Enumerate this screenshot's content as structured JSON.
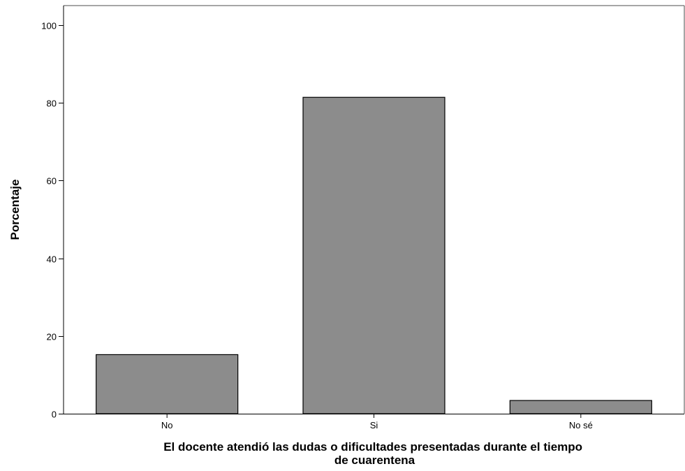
{
  "chart_data": {
    "type": "bar",
    "categories": [
      "No",
      "Si",
      "No sé"
    ],
    "values": [
      15.2,
      81.4,
      3.4
    ],
    "xlabel": [
      "El docente atendió las dudas o dificultades presentadas durante el tiempo",
      "de cuarentena"
    ],
    "ylabel": "Porcentaje",
    "ylim": [
      0,
      105
    ],
    "yticks": [
      0,
      20,
      40,
      60,
      80,
      100
    ],
    "grid": false,
    "bar_color": "#8c8c8c",
    "bar_edge_color": "#000000"
  }
}
